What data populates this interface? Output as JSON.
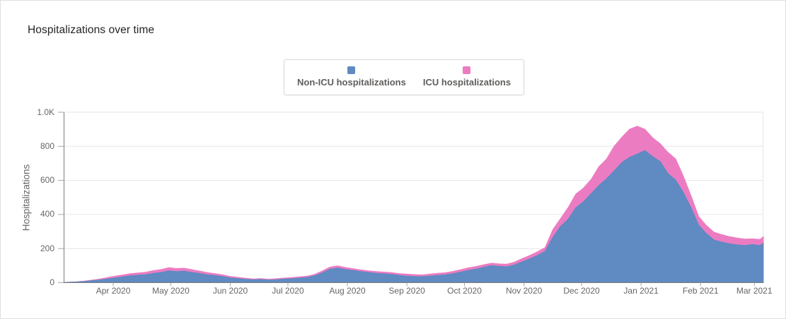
{
  "card": {
    "title": "Hospitalizations over time"
  },
  "legend": {
    "items": [
      {
        "label": "Non-ICU hospitalizations",
        "color": "#5f8ac2"
      },
      {
        "label": "ICU hospitalizations",
        "color": "#ec7cc2"
      }
    ]
  },
  "colors": {
    "non_icu": "#5f8ac2",
    "icu": "#ec7cc2",
    "gridline": "#e6e6e6",
    "axis_line": "#7a7a7a",
    "tick_mark": "#a6a6a6",
    "tick_text": "#666666",
    "title_text": "#252423",
    "legend_text": "#605e5c"
  },
  "chart_data": {
    "type": "area",
    "stacked": true,
    "title": "Hospitalizations over time",
    "xlabel": "",
    "ylabel": "Hospitalizations",
    "ylim": [
      0,
      1000
    ],
    "grid": "horizontal",
    "legend_position": "top",
    "y_ticks": [
      {
        "value": 0,
        "label": "0"
      },
      {
        "value": 200,
        "label": "200"
      },
      {
        "value": 400,
        "label": "400"
      },
      {
        "value": 600,
        "label": "600"
      },
      {
        "value": 800,
        "label": "800"
      },
      {
        "value": 1000,
        "label": "1.0K"
      }
    ],
    "start_date": "2020-03-05",
    "step_days": 4,
    "x_ticks": [
      {
        "label": "Apr 2020",
        "day": 27
      },
      {
        "label": "May 2020",
        "day": 57
      },
      {
        "label": "Jun 2020",
        "day": 88
      },
      {
        "label": "Jul 2020",
        "day": 118
      },
      {
        "label": "Aug 2020",
        "day": 149
      },
      {
        "label": "Sep 2020",
        "day": 180
      },
      {
        "label": "Oct 2020",
        "day": 210
      },
      {
        "label": "Nov 2020",
        "day": 241
      },
      {
        "label": "Dec 2020",
        "day": 271
      },
      {
        "label": "Jan 2021",
        "day": 302
      },
      {
        "label": "Feb 2021",
        "day": 333
      },
      {
        "label": "Mar 2021",
        "day": 361
      }
    ],
    "series": [
      {
        "name": "Non-ICU hospitalizations",
        "color": "#5f8ac2",
        "values": [
          1,
          2,
          4,
          7,
          12,
          16,
          22,
          28,
          34,
          40,
          44,
          47,
          55,
          60,
          69,
          65,
          68,
          60,
          54,
          46,
          42,
          36,
          28,
          24,
          20,
          17,
          19,
          15,
          18,
          21,
          24,
          27,
          31,
          40,
          58,
          80,
          86,
          78,
          72,
          65,
          60,
          55,
          52,
          49,
          43,
          38,
          36,
          35,
          39,
          43,
          46,
          52,
          62,
          72,
          80,
          90,
          100,
          96,
          93,
          104,
          122,
          140,
          160,
          184,
          265,
          330,
          372,
          440,
          475,
          523,
          570,
          610,
          656,
          705,
          735,
          755,
          775,
          740,
          710,
          640,
          602,
          530,
          440,
          338,
          288,
          250,
          238,
          228,
          222,
          218,
          224,
          218,
          232
        ]
      },
      {
        "name": "ICU hospitalizations",
        "color": "#ec7cc2",
        "values": [
          0,
          1,
          1,
          2,
          3,
          5,
          8,
          10,
          11,
          13,
          13,
          14,
          16,
          17,
          19,
          18,
          17,
          16,
          14,
          13,
          11,
          10,
          8,
          7,
          6,
          5,
          5,
          5,
          5,
          6,
          6,
          7,
          7,
          9,
          11,
          12,
          12,
          11,
          10,
          10,
          9,
          10,
          10,
          10,
          10,
          12,
          11,
          10,
          11,
          12,
          12,
          14,
          14,
          15,
          15,
          15,
          14,
          14,
          15,
          16,
          19,
          20,
          21,
          22,
          45,
          45,
          68,
          80,
          80,
          83,
          110,
          115,
          144,
          148,
          165,
          163,
          125,
          110,
          105,
          125,
          124,
          96,
          70,
          50,
          48,
          46,
          44,
          42,
          40,
          38,
          33,
          36,
          38
        ]
      }
    ]
  }
}
